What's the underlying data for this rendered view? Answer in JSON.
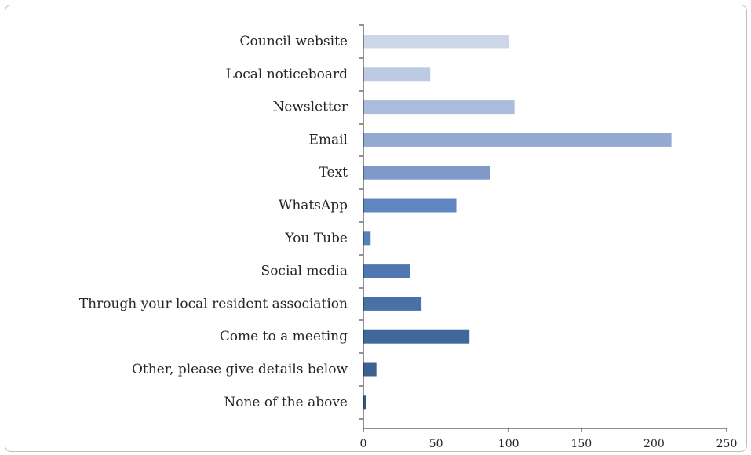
{
  "chart_data": {
    "type": "bar",
    "orientation": "horizontal",
    "title": "",
    "xlabel": "",
    "ylabel": "",
    "categories": [
      "Council website",
      "Local noticeboard",
      "Newsletter",
      "Email",
      "Text",
      "WhatsApp",
      "You Tube",
      "Social media",
      "Through your local resident association",
      "Come to a meeting",
      "Other, please give details below",
      "None of the above"
    ],
    "values": [
      100,
      46,
      104,
      212,
      87,
      64,
      5,
      32,
      40,
      73,
      9,
      2
    ],
    "xlim": [
      0,
      250
    ],
    "xticks": [
      "0",
      "50",
      "100",
      "150",
      "200",
      "250"
    ],
    "grid": false,
    "legend": "none",
    "bar_colors": [
      "#cdd7e8",
      "#bccbe3",
      "#aabcdc",
      "#93a9d2",
      "#8099c9",
      "#5f86c1",
      "#5780bd",
      "#4f78b3",
      "#4a70a7",
      "#41689c",
      "#3d6191",
      "#375884"
    ]
  }
}
